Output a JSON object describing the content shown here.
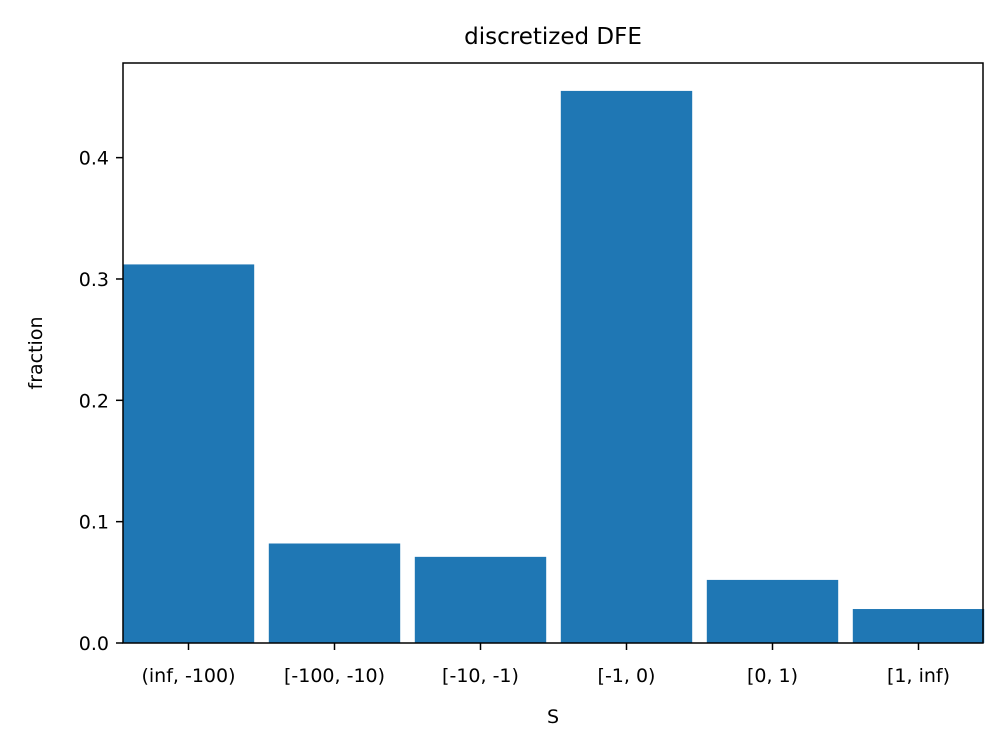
{
  "chart_data": {
    "type": "bar",
    "title": "discretized DFE",
    "xlabel": "S",
    "ylabel": "fraction",
    "categories": [
      "(inf, -100)",
      "[-100, -10)",
      "[-10, -1)",
      "[-1, 0)",
      "[0, 1)",
      "[1, inf)"
    ],
    "values": [
      0.312,
      0.082,
      0.071,
      0.455,
      0.052,
      0.028
    ],
    "ylim": [
      0,
      0.478
    ],
    "yticks": [
      "0.0",
      "0.1",
      "0.2",
      "0.3",
      "0.4"
    ],
    "grid": false,
    "bar_color": "#1f77b4"
  }
}
